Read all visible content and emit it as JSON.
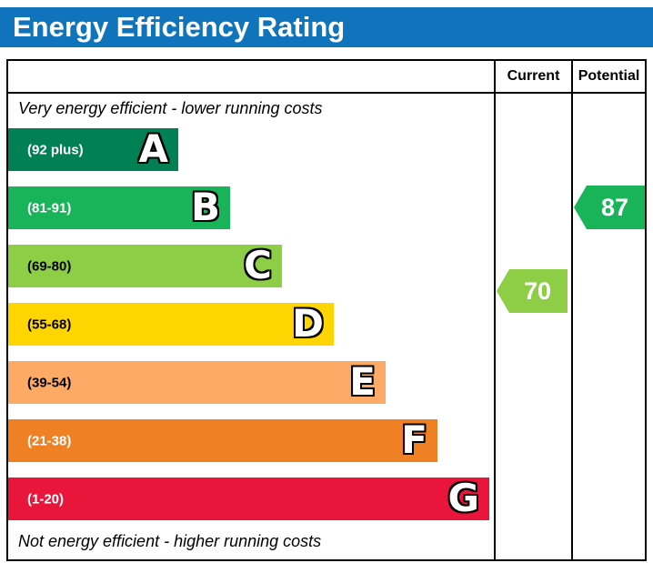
{
  "title": "Energy Efficiency Rating",
  "header": {
    "current": "Current",
    "potential": "Potential"
  },
  "notes": {
    "top": "Very energy efficient - lower running costs",
    "bottom": "Not energy efficient - higher running costs"
  },
  "bands": [
    {
      "letter": "A",
      "range": "(92 plus)",
      "color": "#008054",
      "label_color": "#ffffff"
    },
    {
      "letter": "B",
      "range": "(81-91)",
      "color": "#19b459",
      "label_color": "#ffffff"
    },
    {
      "letter": "C",
      "range": "(69-80)",
      "color": "#8dce46",
      "label_color": "#000000"
    },
    {
      "letter": "D",
      "range": "(55-68)",
      "color": "#ffd500",
      "label_color": "#000000"
    },
    {
      "letter": "E",
      "range": "(39-54)",
      "color": "#fcaa65",
      "label_color": "#000000"
    },
    {
      "letter": "F",
      "range": "(21-38)",
      "color": "#ef8023",
      "label_color": "#ffffff"
    },
    {
      "letter": "G",
      "range": "(1-20)",
      "color": "#e9153b",
      "label_color": "#ffffff"
    }
  ],
  "ratings": {
    "current": {
      "value": "70",
      "color": "#8dce46",
      "band": "C"
    },
    "potential": {
      "value": "87",
      "color": "#19b459",
      "band": "B"
    }
  },
  "theme": {
    "title_bg": "#1074bd",
    "title_color": "#ffffff"
  },
  "chart_data": {
    "type": "bar",
    "title": "Energy Efficiency Rating",
    "bands": [
      {
        "label": "A",
        "range_text": "(92 plus)",
        "min": 92,
        "color": "#008054"
      },
      {
        "label": "B",
        "range_text": "(81-91)",
        "min": 81,
        "max": 91,
        "color": "#19b459"
      },
      {
        "label": "C",
        "range_text": "(69-80)",
        "min": 69,
        "max": 80,
        "color": "#8dce46"
      },
      {
        "label": "D",
        "range_text": "(55-68)",
        "min": 55,
        "max": 68,
        "color": "#ffd500"
      },
      {
        "label": "E",
        "range_text": "(39-54)",
        "min": 39,
        "max": 54,
        "color": "#fcaa65"
      },
      {
        "label": "F",
        "range_text": "(21-38)",
        "min": 21,
        "max": 38,
        "color": "#ef8023"
      },
      {
        "label": "G",
        "range_text": "(1-20)",
        "min": 1,
        "max": 20,
        "color": "#e9153b"
      }
    ],
    "markers": [
      {
        "name": "Current",
        "value": 70,
        "band": "C"
      },
      {
        "name": "Potential",
        "value": 87,
        "band": "B"
      }
    ],
    "annotations": [
      "Very energy efficient - lower running costs",
      "Not energy efficient - higher running costs"
    ],
    "legend_position": "none",
    "grid": false
  }
}
